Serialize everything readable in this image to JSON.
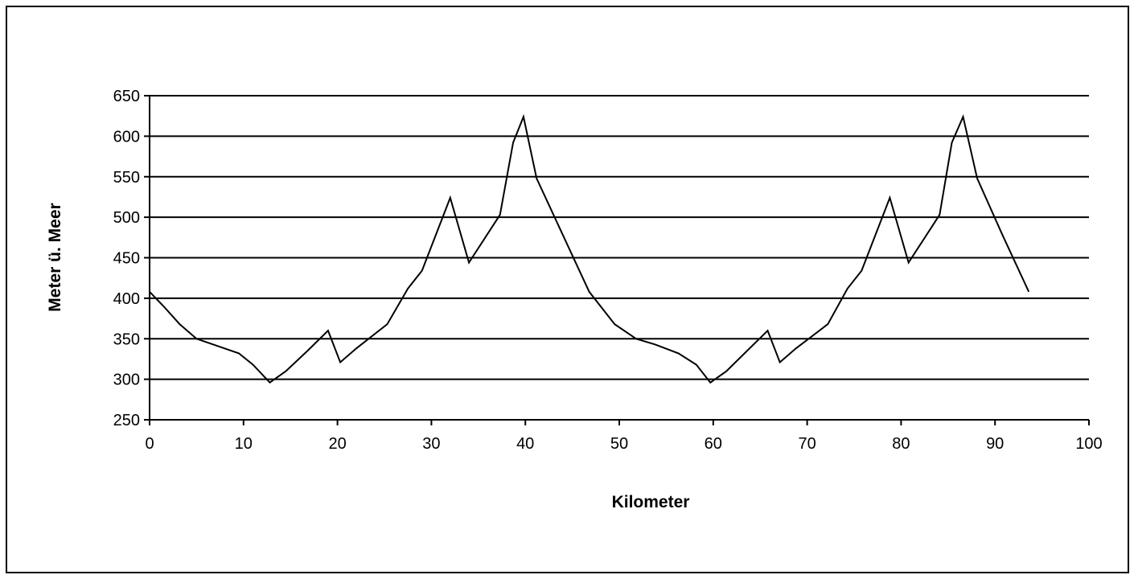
{
  "chart_data": {
    "type": "line",
    "title": "",
    "xlabel": "Kilometer",
    "ylabel": "Meter ü. Meer",
    "xlim": [
      0,
      100
    ],
    "ylim": [
      250,
      650
    ],
    "xticks": [
      0,
      10,
      20,
      30,
      40,
      50,
      60,
      70,
      80,
      90,
      100
    ],
    "yticks": [
      250,
      300,
      350,
      400,
      450,
      500,
      550,
      600,
      650
    ],
    "grid": "horizontal",
    "legend": "none",
    "line_color": "#000000",
    "series": [
      {
        "x": [
          0,
          1.5,
          3.2,
          5,
          7,
          9.5,
          11,
          12.8,
          14.5,
          16.8,
          19,
          20.3,
          22,
          25.3,
          27.5,
          29,
          32,
          34,
          37.3,
          38.7,
          39.8,
          41.2,
          44,
          46.8,
          49.5,
          51.8,
          53.8,
          56.3,
          58.2,
          59.7,
          61.4,
          63.6,
          65.8,
          67.1,
          68.8,
          72.2,
          74.3,
          75.8,
          78.8,
          80.8,
          84.1,
          85.4,
          86.6,
          88.1,
          90.8,
          93.6
        ],
        "y": [
          408,
          390,
          368,
          350,
          342,
          332,
          318,
          296,
          310,
          335,
          360,
          321,
          338,
          368,
          412,
          434,
          524,
          444,
          503,
          592,
          624,
          548,
          478,
          408,
          368,
          350,
          343,
          332,
          318,
          296,
          310,
          335,
          360,
          321,
          338,
          368,
          412,
          434,
          524,
          444,
          503,
          592,
          624,
          548,
          478,
          408
        ]
      }
    ]
  }
}
